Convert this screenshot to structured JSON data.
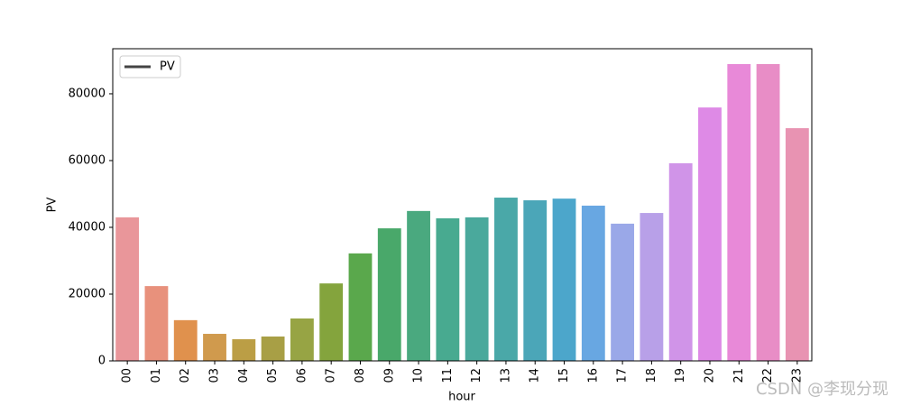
{
  "chart_data": {
    "type": "bar",
    "x_label": "hour",
    "y_label": "PV",
    "categories": [
      "00",
      "01",
      "02",
      "03",
      "04",
      "05",
      "06",
      "07",
      "08",
      "09",
      "10",
      "11",
      "12",
      "13",
      "14",
      "15",
      "16",
      "17",
      "18",
      "19",
      "20",
      "21",
      "22",
      "23"
    ],
    "series": [
      {
        "name": "PV",
        "color": "#444444",
        "colors": [
          "#e9969a",
          "#e8917c",
          "#e0914d",
          "#d09a4d",
          "#bb9e45",
          "#a89f45",
          "#97a444",
          "#84a43d",
          "#5aa84c",
          "#49a86a",
          "#4aa97f",
          "#48aa90",
          "#4aa99c",
          "#4aa8a8",
          "#4ba6b8",
          "#4ca6cb",
          "#68a7e2",
          "#9aa8e8",
          "#b8a0e8",
          "#d094e8",
          "#de8ae6",
          "#e889d8",
          "#e88dc6",
          "#e893b2"
        ],
        "values": [
          43000,
          22400,
          12200,
          8100,
          6500,
          7300,
          12700,
          23200,
          32200,
          39700,
          44900,
          42700,
          43000,
          48900,
          48100,
          48600,
          46500,
          41100,
          44300,
          59200,
          75900,
          88900,
          88900,
          69700
        ]
      }
    ],
    "ylim": [
      0,
      93500
    ],
    "yticks": [
      0,
      20000,
      40000,
      60000,
      80000
    ],
    "legend": "upper left",
    "watermark": "CSDN @李现分现"
  }
}
